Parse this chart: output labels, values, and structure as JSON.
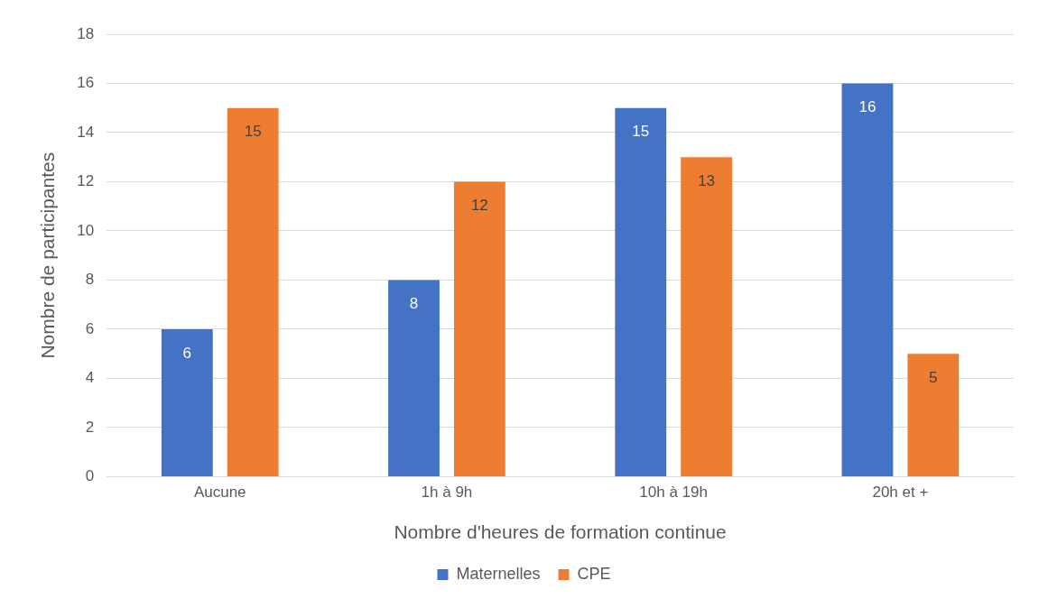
{
  "chart_data": {
    "type": "bar",
    "xlabel": "Nombre d'heures de formation continue",
    "ylabel": "Nombre de participantes",
    "categories": [
      "Aucune",
      "1h à 9h",
      "10h à 19h",
      "20h et +"
    ],
    "series": [
      {
        "name": "Maternelles",
        "color": "#4472c4",
        "values": [
          6,
          8,
          15,
          16
        ]
      },
      {
        "name": "CPE",
        "color": "#ed7d31",
        "values": [
          15,
          12,
          13,
          5
        ]
      }
    ],
    "ylim": [
      0,
      18
    ],
    "yticks": [
      0,
      2,
      4,
      6,
      8,
      10,
      12,
      14,
      16,
      18
    ],
    "grid": "y",
    "legend": "bottom",
    "data_labels": true
  }
}
